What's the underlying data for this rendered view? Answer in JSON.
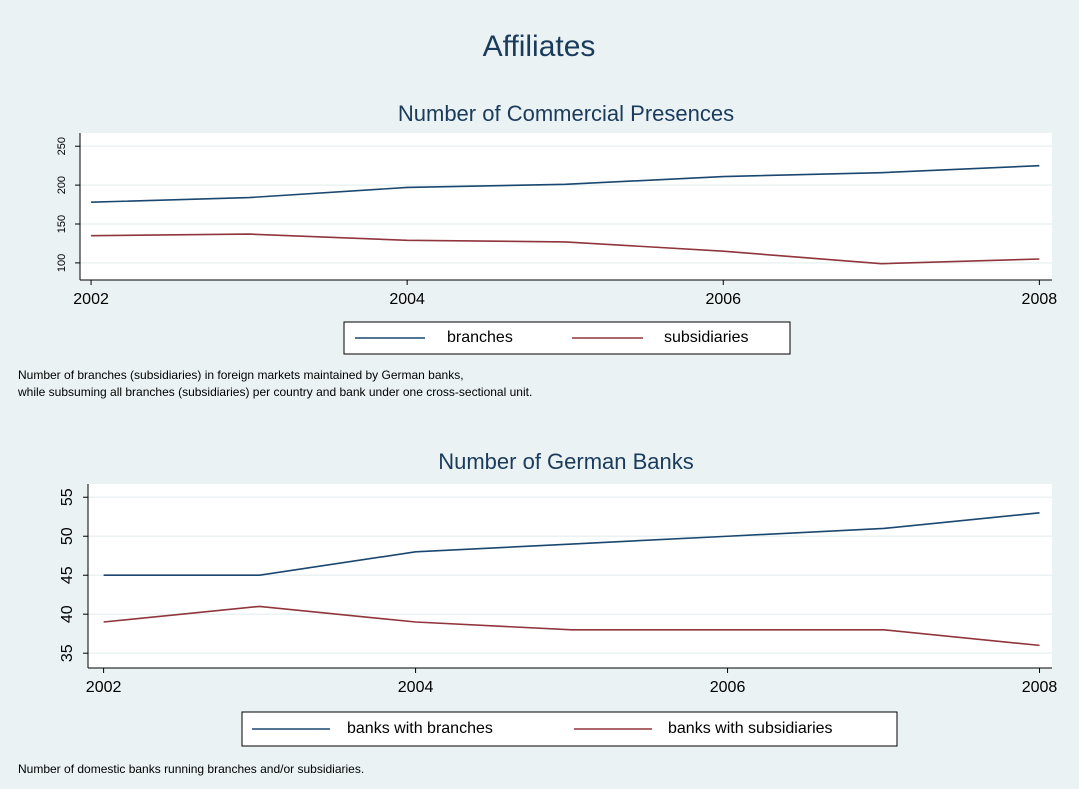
{
  "title": "Affiliates",
  "chart_data": [
    {
      "type": "line",
      "title": "Number of Commercial Presences",
      "x": [
        2002,
        2003,
        2004,
        2005,
        2006,
        2007,
        2008
      ],
      "series": [
        {
          "name": "branches",
          "color": "#1a476f",
          "values": [
            178,
            184,
            197,
            201,
            211,
            216,
            225
          ]
        },
        {
          "name": "subsidiaries",
          "color": "#90353b",
          "values": [
            135,
            137,
            129,
            127,
            115,
            99,
            105
          ]
        }
      ],
      "xlim": [
        2001.93,
        2008.08
      ],
      "xticks": [
        2002,
        2004,
        2006,
        2008
      ],
      "ylim": [
        78,
        267
      ],
      "yticks": [
        100,
        150,
        200,
        250
      ],
      "grid": true,
      "notes": [
        "Number of branches (subsidiaries) in foreign markets maintained by German banks,",
        "while subsuming all branches (subsidiaries) per country and bank under one cross-sectional unit."
      ]
    },
    {
      "type": "line",
      "title": "Number of German Banks",
      "x": [
        2002,
        2003,
        2004,
        2005,
        2006,
        2007,
        2008
      ],
      "series": [
        {
          "name": "banks with branches",
          "color": "#1a476f",
          "values": [
            45,
            45,
            48,
            49,
            50,
            51,
            53
          ]
        },
        {
          "name": "banks with subsidiaries",
          "color": "#90353b",
          "values": [
            39,
            41,
            39,
            38,
            38,
            38,
            36
          ]
        }
      ],
      "xlim": [
        2001.9,
        2008.08
      ],
      "xticks": [
        2002,
        2004,
        2006,
        2008
      ],
      "ylim": [
        33.1,
        56.7
      ],
      "yticks": [
        35,
        40,
        45,
        50,
        55
      ],
      "grid": true,
      "notes": [
        "Number of domestic banks running branches and/or subsidiaries."
      ]
    }
  ]
}
